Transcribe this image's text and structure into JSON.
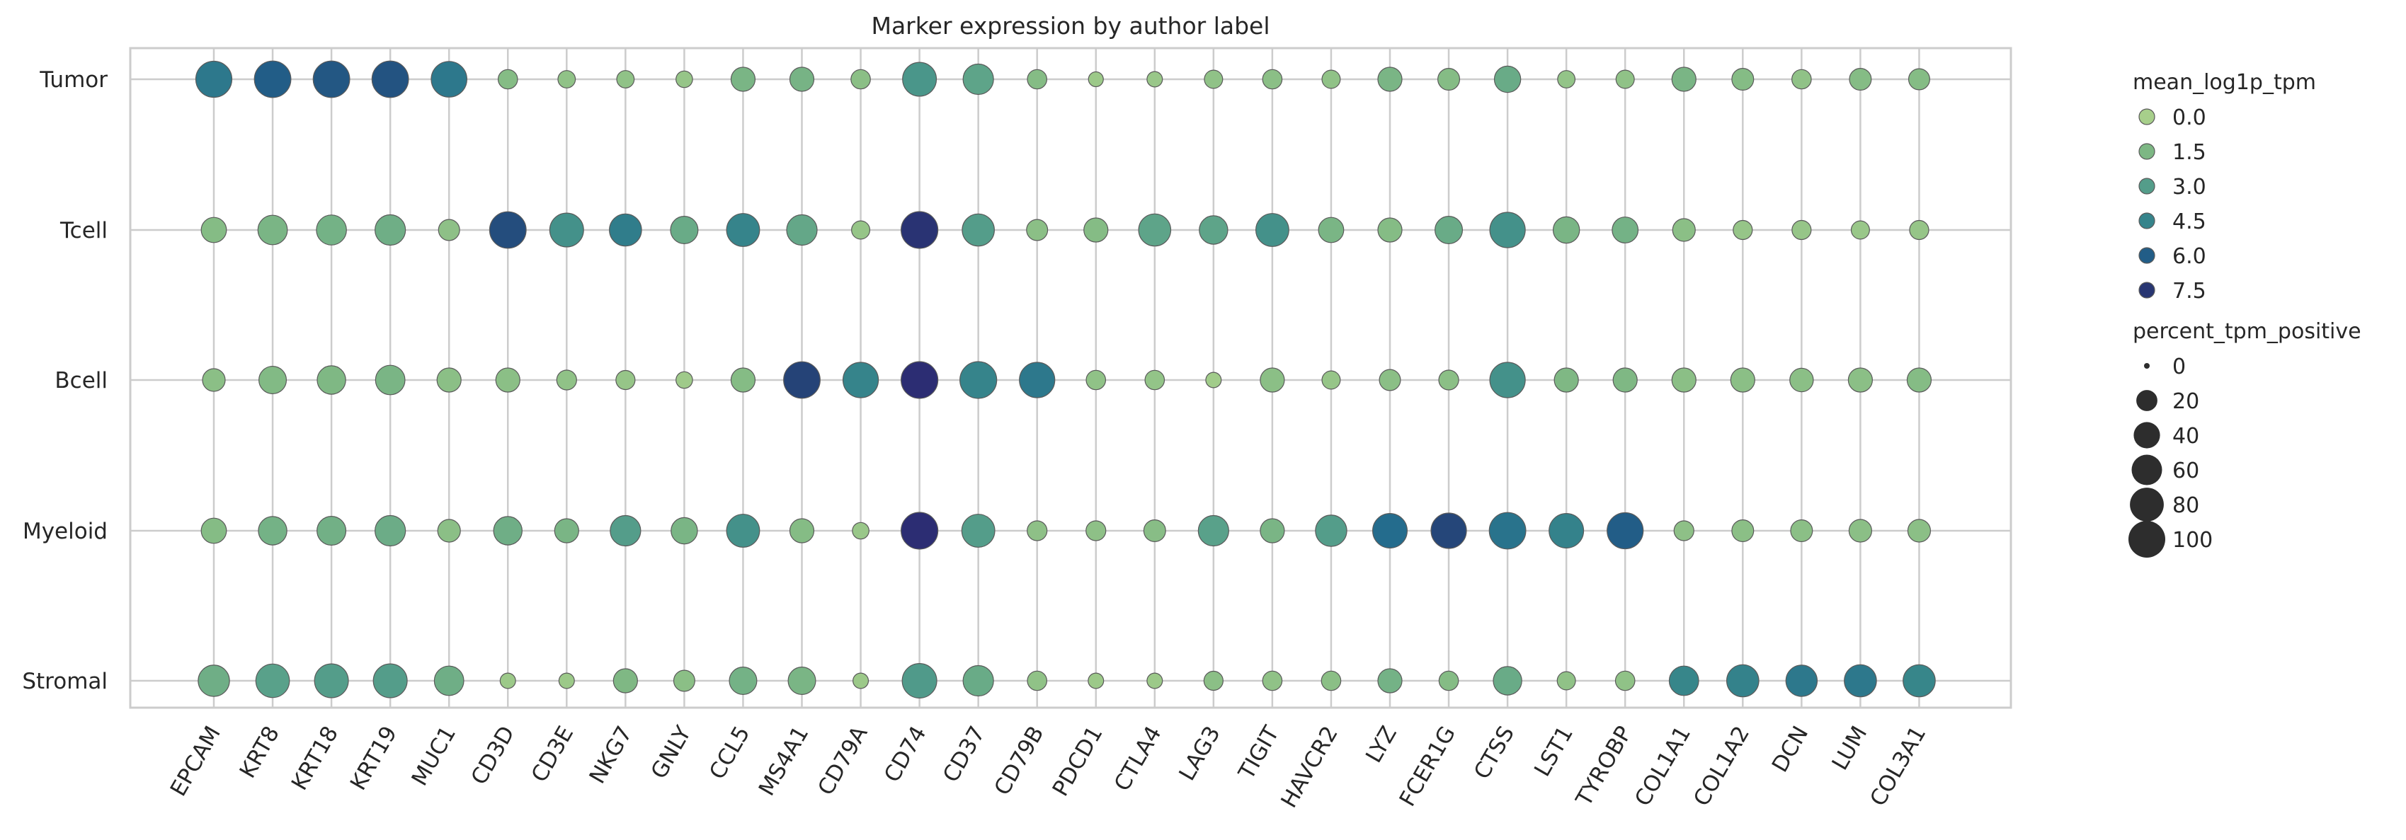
{
  "chart_data": {
    "type": "dotplot",
    "title": "Marker expression by author label",
    "xlabel": "",
    "ylabel": "",
    "genes": [
      "EPCAM",
      "KRT8",
      "KRT18",
      "KRT19",
      "MUC1",
      "CD3D",
      "CD3E",
      "NKG7",
      "GNLY",
      "CCL5",
      "MS4A1",
      "CD79A",
      "CD74",
      "CD37",
      "CD79B",
      "PDCD1",
      "CTLA4",
      "LAG3",
      "TIGIT",
      "HAVCR2",
      "LYZ",
      "FCER1G",
      "CTSS",
      "LST1",
      "TYROBP",
      "COL1A1",
      "COL1A2",
      "DCN",
      "LUM",
      "COL3A1"
    ],
    "groups": [
      "Tumor",
      "Tcell",
      "Bcell",
      "Myeloid",
      "Stromal"
    ],
    "color_legend_title": "mean_log1p_tpm",
    "color_legend_values": [
      "0.0",
      "1.5",
      "3.0",
      "4.5",
      "6.0",
      "7.5"
    ],
    "size_legend_title": "percent_tpm_positive",
    "size_legend_values": [
      "0",
      "20",
      "40",
      "60",
      "80",
      "100"
    ],
    "color_range": [
      0,
      8.5
    ],
    "colors": {
      "palette_stops": [
        "#a7cf8b",
        "#7fb884",
        "#58a08a",
        "#3a8a8a",
        "#21688d",
        "#263a72",
        "#2c2d73"
      ],
      "dot_edge": "#5a5a5a",
      "grid": "#cccccc",
      "frame": "#cccccc"
    },
    "grid": true,
    "legend_placement": "right",
    "mean_log1p_tpm": [
      [
        5.0,
        6.0,
        6.2,
        6.3,
        5.0,
        1.2,
        0.8,
        0.8,
        0.6,
        1.6,
        1.7,
        1.0,
        3.5,
        2.6,
        1.2,
        0.4,
        0.5,
        0.8,
        1.0,
        0.8,
        1.6,
        1.2,
        2.2,
        0.7,
        0.8,
        1.6,
        1.2,
        0.8,
        1.2,
        1.2
      ],
      [
        1.2,
        1.6,
        1.8,
        2.0,
        0.9,
        6.5,
        3.8,
        4.8,
        2.2,
        4.5,
        2.4,
        0.6,
        7.8,
        3.0,
        1.0,
        1.2,
        2.6,
        2.6,
        3.8,
        1.6,
        1.2,
        2.2,
        3.8,
        1.6,
        1.8,
        1.0,
        0.6,
        0.6,
        0.5,
        0.6
      ],
      [
        1.0,
        1.3,
        1.4,
        1.6,
        1.0,
        1.0,
        0.8,
        0.6,
        0.3,
        1.2,
        6.8,
        4.5,
        8.5,
        4.5,
        5.0,
        0.8,
        0.7,
        0.2,
        1.0,
        0.6,
        1.0,
        1.0,
        3.8,
        1.4,
        1.4,
        1.0,
        1.0,
        1.0,
        1.0,
        1.2
      ],
      [
        1.2,
        1.8,
        1.9,
        2.1,
        1.0,
        2.0,
        1.6,
        3.0,
        1.6,
        3.8,
        1.2,
        0.5,
        8.5,
        3.0,
        0.9,
        0.9,
        1.1,
        2.8,
        1.6,
        3.0,
        5.5,
        6.7,
        5.2,
        4.6,
        6.0,
        0.9,
        1.0,
        1.0,
        1.0,
        1.0
      ],
      [
        2.0,
        2.8,
        3.0,
        3.0,
        2.0,
        0.4,
        0.4,
        1.4,
        1.0,
        1.8,
        1.6,
        0.4,
        3.2,
        2.2,
        0.8,
        0.4,
        0.4,
        1.0,
        0.8,
        1.0,
        1.8,
        1.2,
        2.2,
        0.8,
        0.8,
        4.4,
        4.6,
        5.0,
        5.0,
        4.4
      ]
    ],
    "percent_tpm_positive": [
      [
        95,
        98,
        98,
        98,
        92,
        15,
        10,
        10,
        8,
        30,
        30,
        15,
        80,
        60,
        15,
        5,
        6,
        12,
        15,
        12,
        30,
        22,
        40,
        10,
        12,
        30,
        22,
        15,
        22,
        20
      ],
      [
        35,
        55,
        58,
        60,
        20,
        98,
        80,
        70,
        45,
        75,
        60,
        12,
        100,
        70,
        20,
        30,
        70,
        50,
        75,
        35,
        30,
        45,
        90,
        40,
        38,
        25,
        14,
        14,
        12,
        14
      ],
      [
        25,
        45,
        50,
        55,
        30,
        30,
        16,
        14,
        8,
        30,
        98,
        90,
        100,
        100,
        90,
        15,
        15,
        6,
        30,
        12,
        20,
        16,
        90,
        30,
        30,
        30,
        30,
        28,
        30,
        30
      ],
      [
        35,
        50,
        52,
        60,
        25,
        50,
        30,
        60,
        40,
        75,
        30,
        8,
        100,
        75,
        16,
        16,
        22,
        60,
        30,
        65,
        85,
        90,
        98,
        85,
        95,
        16,
        22,
        22,
        25,
        25
      ],
      [
        65,
        78,
        80,
        80,
        55,
        6,
        6,
        30,
        20,
        45,
        45,
        6,
        85,
        60,
        15,
        6,
        6,
        14,
        15,
        15,
        30,
        15,
        50,
        12,
        15,
        55,
        70,
        65,
        70,
        70
      ]
    ]
  }
}
